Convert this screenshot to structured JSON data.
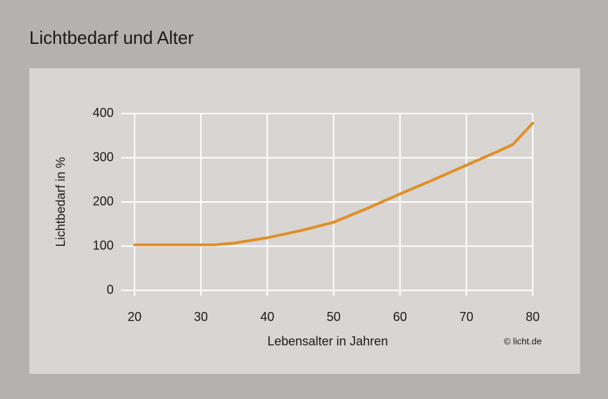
{
  "chart_data": {
    "type": "line",
    "title": "Lichtbedarf und Alter",
    "x_label": "Lebensalter in Jahren",
    "y_label": "Lichtbedarf in %",
    "credit": "© licht.de",
    "x": [
      20,
      30,
      32,
      35,
      40,
      45,
      50,
      55,
      60,
      65,
      70,
      75,
      77,
      80
    ],
    "series": [
      {
        "name": "Lichtbedarf",
        "color": "#e08f26",
        "values": [
          103,
          103,
          103,
          107,
          119,
          135,
          154,
          185,
          218,
          250,
          283,
          316,
          330,
          378
        ]
      }
    ],
    "xlim": [
      20,
      80
    ],
    "xticks": [
      20,
      30,
      40,
      50,
      60,
      70,
      80
    ],
    "ylim": [
      0,
      400
    ],
    "yticks": [
      0,
      100,
      200,
      300,
      400
    ],
    "grid": true
  }
}
